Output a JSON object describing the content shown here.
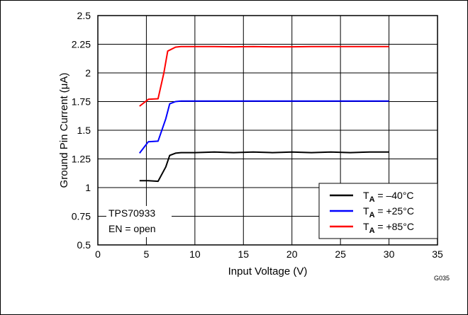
{
  "chart_data": {
    "type": "line",
    "title": "",
    "xlabel": "Input Voltage (V)",
    "ylabel": "Ground Pin Current (μA)",
    "xlim": [
      0,
      35
    ],
    "ylim": [
      0.5,
      2.5
    ],
    "xticks": [
      "0",
      "5",
      "10",
      "15",
      "20",
      "25",
      "30",
      "35"
    ],
    "yticks": [
      "0.5",
      "0.75",
      "1",
      "1.25",
      "1.5",
      "1.75",
      "2",
      "2.25",
      "2.5"
    ],
    "grid": true,
    "legend_position": "bottom-right",
    "annotation": [
      "TPS70933",
      "EN = open"
    ],
    "figure_id": "G035",
    "series": [
      {
        "name": "T_A = –40°C",
        "label_parts": {
          "t": "T",
          "sub": "A",
          "rest": " = –40°C"
        },
        "color": "#000000",
        "x": [
          4.3,
          5.2,
          6.2,
          7.0,
          7.4,
          8.0,
          8.6,
          10,
          12,
          14,
          16,
          18,
          20,
          22,
          24,
          26,
          28,
          30
        ],
        "y": [
          1.06,
          1.06,
          1.055,
          1.18,
          1.28,
          1.3,
          1.305,
          1.305,
          1.31,
          1.305,
          1.31,
          1.305,
          1.31,
          1.305,
          1.31,
          1.305,
          1.31,
          1.31
        ]
      },
      {
        "name": "T_A = +25°C",
        "label_parts": {
          "t": "T",
          "sub": "A",
          "rest": " = +25°C"
        },
        "color": "#0000ff",
        "x": [
          4.3,
          5.2,
          6.2,
          7.0,
          7.4,
          8.0,
          8.6,
          10,
          12,
          14,
          16,
          18,
          20,
          22,
          24,
          26,
          28,
          30
        ],
        "y": [
          1.3,
          1.4,
          1.405,
          1.6,
          1.73,
          1.75,
          1.755,
          1.755,
          1.755,
          1.755,
          1.755,
          1.755,
          1.755,
          1.755,
          1.755,
          1.755,
          1.755,
          1.755
        ]
      },
      {
        "name": "T_A = +85°C",
        "label_parts": {
          "t": "T",
          "sub": "A",
          "rest": " = +85°C"
        },
        "color": "#ff0000",
        "x": [
          4.3,
          5.2,
          6.2,
          6.8,
          7.2,
          8.0,
          8.6,
          10,
          12,
          14,
          16,
          18,
          20,
          22,
          24,
          26,
          28,
          30
        ],
        "y": [
          1.71,
          1.77,
          1.775,
          2.0,
          2.19,
          2.225,
          2.23,
          2.23,
          2.23,
          2.228,
          2.23,
          2.228,
          2.228,
          2.23,
          2.23,
          2.23,
          2.23,
          2.23
        ]
      }
    ]
  }
}
